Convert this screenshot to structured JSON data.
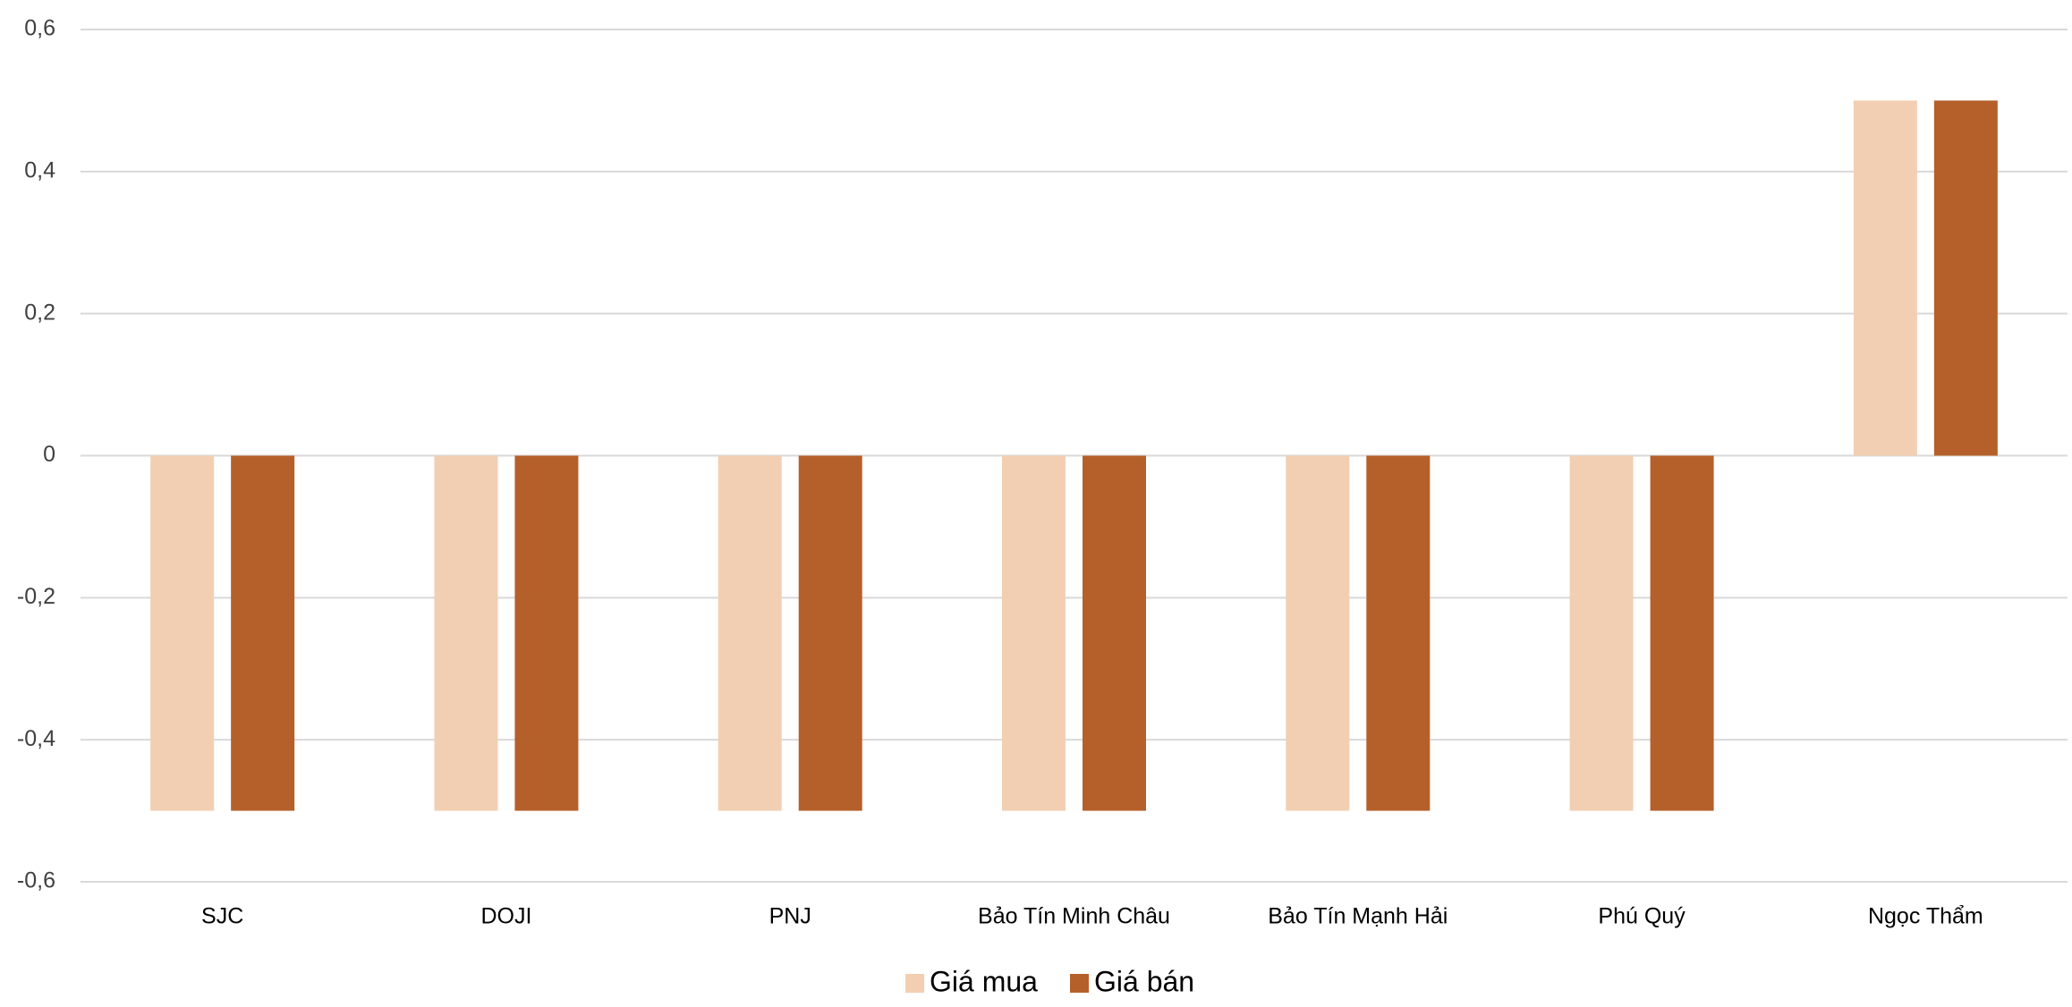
{
  "chart_data": {
    "type": "bar",
    "categories": [
      "SJC",
      "DOJI",
      "PNJ",
      "Bảo Tín Minh Châu",
      "Bảo Tín Mạnh Hải",
      "Phú Quý",
      "Ngọc Thẩm"
    ],
    "series": [
      {
        "name": "Giá mua",
        "color": "#f2cfb2",
        "values": [
          -0.5,
          -0.5,
          -0.5,
          -0.5,
          -0.5,
          -0.5,
          0.5
        ]
      },
      {
        "name": "Giá bán",
        "color": "#b5602a",
        "values": [
          -0.5,
          -0.5,
          -0.5,
          -0.5,
          -0.5,
          -0.5,
          0.5
        ]
      }
    ],
    "ylim": [
      -0.6,
      0.6
    ],
    "yticks": [
      {
        "value": -0.6,
        "label": "-0,6"
      },
      {
        "value": -0.4,
        "label": "-0,4"
      },
      {
        "value": -0.2,
        "label": "-0,2"
      },
      0,
      {
        "value": 0.2,
        "label": "0,2"
      },
      {
        "value": 0.4,
        "label": "0,4"
      },
      {
        "value": 0.6,
        "label": "0,6"
      }
    ],
    "grid": true,
    "legend": "bottom"
  }
}
